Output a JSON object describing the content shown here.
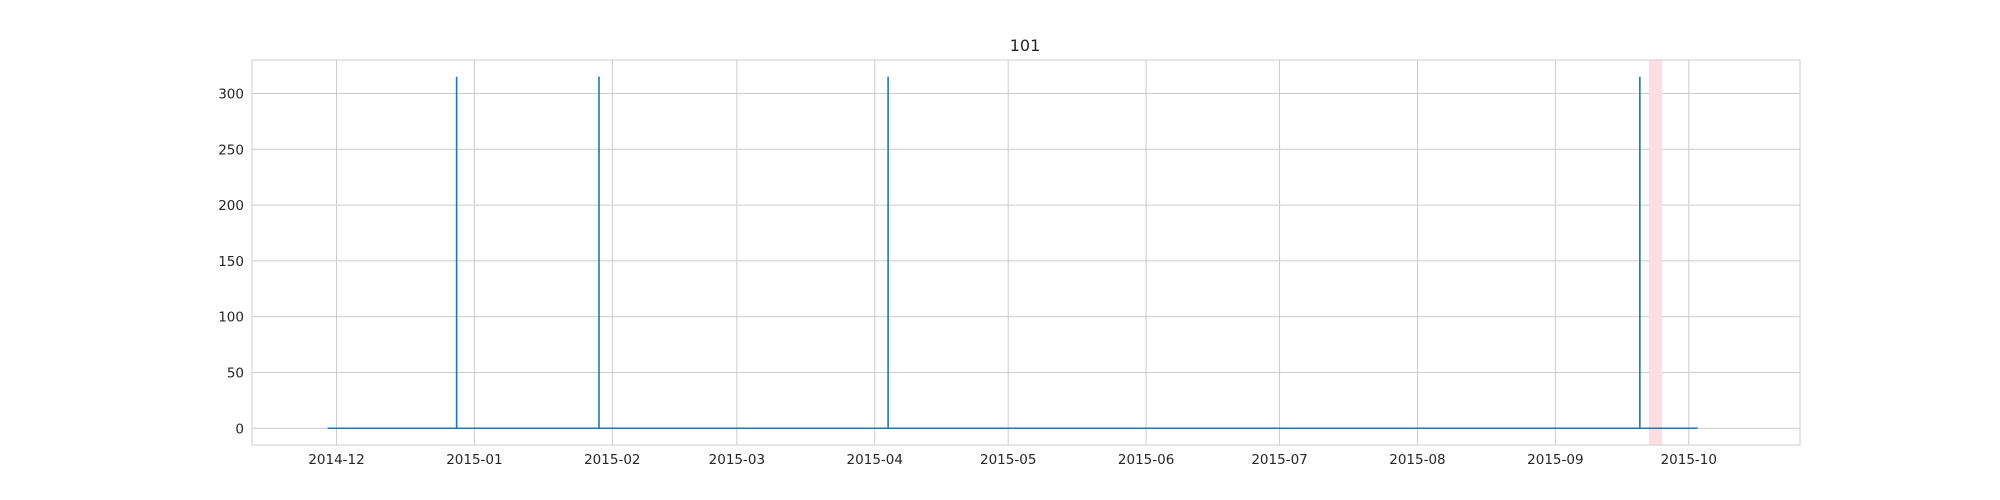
{
  "chart_data": {
    "type": "line",
    "title": "101",
    "xlabel": "",
    "ylabel": "",
    "x_axis": "date",
    "xlim": [
      "2014-11-12",
      "2015-10-26"
    ],
    "ylim": [
      -15,
      330
    ],
    "grid": true,
    "x_ticks": [
      "2014-12-01",
      "2015-01-01",
      "2015-02-01",
      "2015-03-01",
      "2015-04-01",
      "2015-05-01",
      "2015-06-01",
      "2015-07-01",
      "2015-08-01",
      "2015-09-01",
      "2015-10-01"
    ],
    "x_tick_labels": [
      "2014-12",
      "2015-01",
      "2015-02",
      "2015-03",
      "2015-04",
      "2015-05",
      "2015-06",
      "2015-07",
      "2015-08",
      "2015-09",
      "2015-10"
    ],
    "y_ticks": [
      0,
      50,
      100,
      150,
      200,
      250,
      300
    ],
    "y_tick_labels": [
      "0",
      "50",
      "100",
      "150",
      "200",
      "250",
      "300"
    ],
    "series": [
      {
        "color": "#1f77b4",
        "x": [
          "2014-11-29",
          "2014-12-28",
          "2014-12-28",
          "2014-12-28",
          "2015-01-29",
          "2015-01-29",
          "2015-01-29",
          "2015-04-04",
          "2015-04-04",
          "2015-04-04",
          "2015-09-20",
          "2015-09-20",
          "2015-09-20",
          "2015-10-03"
        ],
        "y": [
          0,
          0,
          315,
          0,
          0,
          315,
          0,
          0,
          315,
          0,
          0,
          315,
          0,
          0
        ]
      }
    ],
    "highlight_span": {
      "x": [
        "2015-09-22",
        "2015-09-25"
      ],
      "color": "#ffdde0"
    }
  }
}
